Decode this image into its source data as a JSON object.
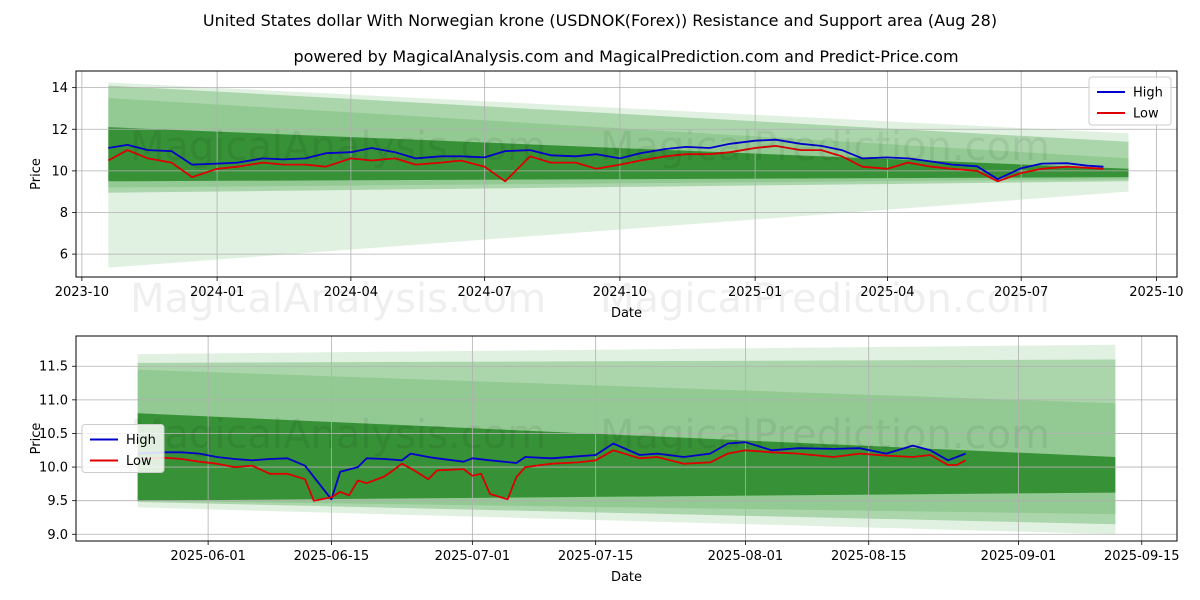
{
  "title": "United States dollar With Norwegian krone (USDNOK(Forex)) Resistance and Support area (Aug 28)",
  "subtitle": "powered by MagicalAnalysis.com and MagicalPrediction.com and Predict-Price.com",
  "watermarks": [
    "MagicalAnalysis.com",
    "MagicalPrediction.com"
  ],
  "colors": {
    "high": "#0000cc",
    "low": "#dd0000",
    "band_dark": "#2e8b2e",
    "band_light": "#9fd09f"
  },
  "chart_data": [
    {
      "type": "line",
      "xlabel": "Date",
      "ylabel": "Price",
      "xlim": [
        "2023-09-27",
        "2025-10-15"
      ],
      "ylim": [
        4.9,
        14.8
      ],
      "grid": true,
      "legend_position": "top-right",
      "x_ticks": [
        {
          "label": "2023-10",
          "date": "2023-10-01"
        },
        {
          "label": "2024-01",
          "date": "2024-01-01"
        },
        {
          "label": "2024-04",
          "date": "2024-04-01"
        },
        {
          "label": "2024-07",
          "date": "2024-07-01"
        },
        {
          "label": "2024-10",
          "date": "2024-10-01"
        },
        {
          "label": "2025-01",
          "date": "2025-01-01"
        },
        {
          "label": "2025-04",
          "date": "2025-04-01"
        },
        {
          "label": "2025-07",
          "date": "2025-07-01"
        },
        {
          "label": "2025-10",
          "date": "2025-10-01"
        }
      ],
      "y_ticks": [
        {
          "label": "6",
          "value": 6
        },
        {
          "label": "8",
          "value": 8
        },
        {
          "label": "10",
          "value": 10
        },
        {
          "label": "12",
          "value": 12
        },
        {
          "label": "14",
          "value": 14
        }
      ],
      "bands": [
        {
          "x": [
            "2023-10-19",
            "2025-09-12"
          ],
          "top": [
            14.25,
            11.8
          ],
          "bottom": [
            5.35,
            9.0
          ],
          "shade": "light"
        },
        {
          "x": [
            "2023-10-19",
            "2025-09-12"
          ],
          "top": [
            14.1,
            11.4
          ],
          "bottom": [
            8.95,
            9.5
          ],
          "shade": "mid"
        },
        {
          "x": [
            "2023-10-19",
            "2025-09-12"
          ],
          "top": [
            13.5,
            10.6
          ],
          "bottom": [
            9.2,
            9.6
          ],
          "shade": "mid"
        },
        {
          "x": [
            "2023-10-19",
            "2025-09-12"
          ],
          "top": [
            12.1,
            10.1
          ],
          "bottom": [
            9.5,
            9.7
          ],
          "shade": "dark"
        }
      ],
      "series": [
        {
          "name": "High",
          "x": [
            "2023-10-19",
            "2023-11-01",
            "2023-11-15",
            "2023-12-01",
            "2023-12-15",
            "2024-01-01",
            "2024-01-15",
            "2024-02-01",
            "2024-02-15",
            "2024-03-01",
            "2024-03-15",
            "2024-04-01",
            "2024-04-15",
            "2024-05-01",
            "2024-05-15",
            "2024-06-01",
            "2024-06-15",
            "2024-07-01",
            "2024-07-15",
            "2024-08-01",
            "2024-08-15",
            "2024-09-01",
            "2024-09-15",
            "2024-10-01",
            "2024-10-15",
            "2024-11-01",
            "2024-11-15",
            "2024-12-01",
            "2024-12-15",
            "2025-01-01",
            "2025-01-15",
            "2025-02-01",
            "2025-02-15",
            "2025-03-01",
            "2025-03-15",
            "2025-04-01",
            "2025-04-15",
            "2025-05-01",
            "2025-05-15",
            "2025-06-01",
            "2025-06-15",
            "2025-07-01",
            "2025-07-15",
            "2025-08-01",
            "2025-08-15",
            "2025-08-26"
          ],
          "values": [
            11.1,
            11.25,
            11.0,
            10.95,
            10.3,
            10.35,
            10.4,
            10.6,
            10.55,
            10.6,
            10.85,
            10.9,
            11.1,
            10.9,
            10.6,
            10.7,
            10.7,
            10.65,
            10.95,
            11.0,
            10.75,
            10.7,
            10.8,
            10.6,
            10.85,
            11.05,
            11.15,
            11.1,
            11.3,
            11.45,
            11.5,
            11.3,
            11.2,
            11.0,
            10.6,
            10.65,
            10.6,
            10.45,
            10.3,
            10.22,
            9.6,
            10.13,
            10.35,
            10.37,
            10.25,
            10.2
          ]
        },
        {
          "name": "Low",
          "x": [
            "2023-10-19",
            "2023-11-01",
            "2023-11-15",
            "2023-12-01",
            "2023-12-15",
            "2024-01-01",
            "2024-01-15",
            "2024-02-01",
            "2024-02-15",
            "2024-03-01",
            "2024-03-15",
            "2024-04-01",
            "2024-04-15",
            "2024-05-01",
            "2024-05-15",
            "2024-06-01",
            "2024-06-15",
            "2024-07-01",
            "2024-07-15",
            "2024-08-01",
            "2024-08-15",
            "2024-09-01",
            "2024-09-15",
            "2024-10-01",
            "2024-10-15",
            "2024-11-01",
            "2024-11-15",
            "2024-12-01",
            "2024-12-15",
            "2025-01-01",
            "2025-01-15",
            "2025-02-01",
            "2025-02-15",
            "2025-03-01",
            "2025-03-15",
            "2025-04-01",
            "2025-04-15",
            "2025-05-01",
            "2025-05-15",
            "2025-06-01",
            "2025-06-15",
            "2025-07-01",
            "2025-07-15",
            "2025-08-01",
            "2025-08-15",
            "2025-08-26"
          ],
          "values": [
            10.5,
            11.0,
            10.6,
            10.4,
            9.7,
            10.1,
            10.2,
            10.4,
            10.3,
            10.3,
            10.2,
            10.6,
            10.5,
            10.6,
            10.3,
            10.4,
            10.5,
            10.2,
            9.5,
            10.7,
            10.4,
            10.4,
            10.1,
            10.3,
            10.5,
            10.7,
            10.8,
            10.8,
            10.9,
            11.1,
            11.2,
            11.0,
            11.0,
            10.7,
            10.2,
            10.1,
            10.4,
            10.2,
            10.1,
            10.0,
            9.5,
            9.9,
            10.1,
            10.2,
            10.15,
            10.1
          ]
        }
      ]
    },
    {
      "type": "line",
      "xlabel": "Date",
      "ylabel": "Price",
      "xlim": [
        "2025-05-17",
        "2025-09-19"
      ],
      "ylim": [
        8.9,
        11.95
      ],
      "grid": true,
      "legend_position": "center-left",
      "x_ticks": [
        {
          "label": "2025-06-01",
          "date": "2025-06-01"
        },
        {
          "label": "2025-06-15",
          "date": "2025-06-15"
        },
        {
          "label": "2025-07-01",
          "date": "2025-07-01"
        },
        {
          "label": "2025-07-15",
          "date": "2025-07-15"
        },
        {
          "label": "2025-08-01",
          "date": "2025-08-01"
        },
        {
          "label": "2025-08-15",
          "date": "2025-08-15"
        },
        {
          "label": "2025-09-01",
          "date": "2025-09-01"
        },
        {
          "label": "2025-09-15",
          "date": "2025-09-15"
        }
      ],
      "y_ticks": [
        {
          "label": "9.0",
          "value": 9.0
        },
        {
          "label": "9.5",
          "value": 9.5
        },
        {
          "label": "10.0",
          "value": 10.0
        },
        {
          "label": "10.5",
          "value": 10.5
        },
        {
          "label": "11.0",
          "value": 11.0
        },
        {
          "label": "11.5",
          "value": 11.5
        }
      ],
      "bands": [
        {
          "x": [
            "2025-05-24",
            "2025-09-12"
          ],
          "top": [
            11.68,
            11.82
          ],
          "bottom": [
            9.4,
            9.0
          ],
          "shade": "light"
        },
        {
          "x": [
            "2025-05-24",
            "2025-09-12"
          ],
          "top": [
            11.55,
            11.6
          ],
          "bottom": [
            9.48,
            9.15
          ],
          "shade": "mid"
        },
        {
          "x": [
            "2025-05-24",
            "2025-09-12"
          ],
          "top": [
            11.45,
            10.95
          ],
          "bottom": [
            9.5,
            9.3
          ],
          "shade": "mid"
        },
        {
          "x": [
            "2025-05-24",
            "2025-09-12"
          ],
          "top": [
            10.8,
            10.15
          ],
          "bottom": [
            9.5,
            9.62
          ],
          "shade": "dark"
        }
      ],
      "series": [
        {
          "name": "High",
          "x": [
            "2025-05-24",
            "2025-05-27",
            "2025-05-29",
            "2025-05-31",
            "2025-06-02",
            "2025-06-04",
            "2025-06-06",
            "2025-06-08",
            "2025-06-10",
            "2025-06-12",
            "2025-06-15",
            "2025-06-16",
            "2025-06-18",
            "2025-06-19",
            "2025-06-21",
            "2025-06-23",
            "2025-06-24",
            "2025-06-26",
            "2025-06-27",
            "2025-06-30",
            "2025-07-01",
            "2025-07-03",
            "2025-07-06",
            "2025-07-07",
            "2025-07-10",
            "2025-07-13",
            "2025-07-15",
            "2025-07-17",
            "2025-07-20",
            "2025-07-22",
            "2025-07-25",
            "2025-07-28",
            "2025-07-30",
            "2025-08-01",
            "2025-08-04",
            "2025-08-07",
            "2025-08-11",
            "2025-08-14",
            "2025-08-17",
            "2025-08-20",
            "2025-08-22",
            "2025-08-24",
            "2025-08-25",
            "2025-08-26"
          ],
          "values": [
            10.2,
            10.22,
            10.22,
            10.2,
            10.15,
            10.12,
            10.1,
            10.12,
            10.13,
            10.02,
            9.52,
            9.93,
            10.0,
            10.13,
            10.12,
            10.1,
            10.2,
            10.15,
            10.13,
            10.08,
            10.13,
            10.1,
            10.06,
            10.15,
            10.13,
            10.16,
            10.18,
            10.35,
            10.18,
            10.2,
            10.15,
            10.2,
            10.35,
            10.37,
            10.25,
            10.28,
            10.27,
            10.28,
            10.2,
            10.32,
            10.25,
            10.1,
            10.15,
            10.2
          ]
        },
        {
          "name": "Low",
          "x": [
            "2025-05-24",
            "2025-05-27",
            "2025-05-29",
            "2025-05-31",
            "2025-06-02",
            "2025-06-04",
            "2025-06-06",
            "2025-06-08",
            "2025-06-10",
            "2025-06-12",
            "2025-06-13",
            "2025-06-15",
            "2025-06-16",
            "2025-06-17",
            "2025-06-18",
            "2025-06-19",
            "2025-06-21",
            "2025-06-22",
            "2025-06-23",
            "2025-06-24",
            "2025-06-26",
            "2025-06-27",
            "2025-06-30",
            "2025-07-01",
            "2025-07-02",
            "2025-07-03",
            "2025-07-05",
            "2025-07-06",
            "2025-07-07",
            "2025-07-10",
            "2025-07-13",
            "2025-07-15",
            "2025-07-17",
            "2025-07-20",
            "2025-07-22",
            "2025-07-25",
            "2025-07-28",
            "2025-07-30",
            "2025-08-01",
            "2025-08-04",
            "2025-08-07",
            "2025-08-11",
            "2025-08-14",
            "2025-08-17",
            "2025-08-20",
            "2025-08-22",
            "2025-08-24",
            "2025-08-25",
            "2025-08-26"
          ],
          "values": [
            10.12,
            10.14,
            10.12,
            10.08,
            10.05,
            10.0,
            10.02,
            9.9,
            9.9,
            9.82,
            9.5,
            9.55,
            9.63,
            9.58,
            9.8,
            9.76,
            9.86,
            9.95,
            10.05,
            9.98,
            9.82,
            9.95,
            9.97,
            9.87,
            9.9,
            9.6,
            9.52,
            9.85,
            10.0,
            10.05,
            10.07,
            10.1,
            10.25,
            10.13,
            10.15,
            10.05,
            10.07,
            10.2,
            10.25,
            10.22,
            10.2,
            10.15,
            10.2,
            10.17,
            10.15,
            10.18,
            10.03,
            10.03,
            10.1
          ]
        }
      ]
    }
  ]
}
